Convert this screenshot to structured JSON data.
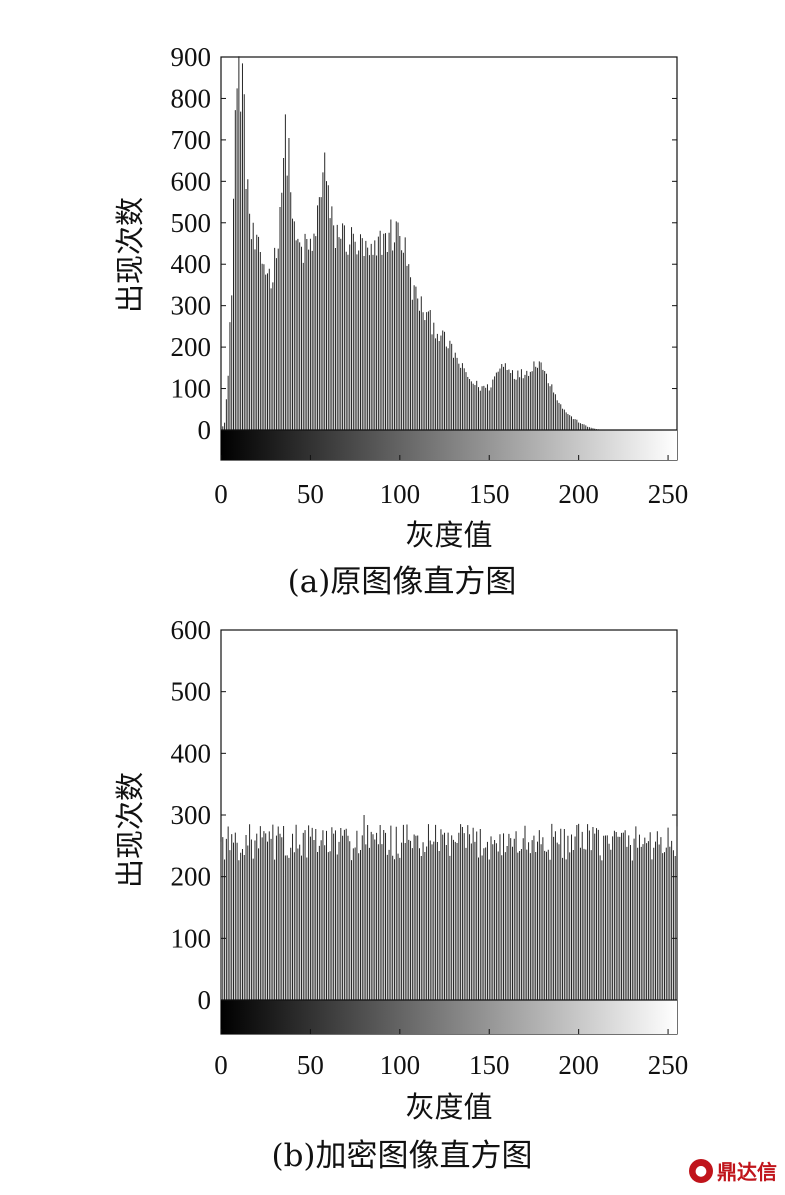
{
  "chart_data": [
    {
      "type": "bar",
      "panel": "a",
      "caption": "(a)原图像直方图",
      "xlabel": "灰度值",
      "ylabel": "出现次数",
      "xlim": [
        0,
        255
      ],
      "ylim": [
        0,
        900
      ],
      "xticks": [
        0,
        50,
        100,
        150,
        200,
        250
      ],
      "yticks": [
        0,
        100,
        200,
        300,
        400,
        500,
        600,
        700,
        800,
        900
      ],
      "grayscale_colorbar": true,
      "anchors": [
        [
          0,
          0
        ],
        [
          2,
          20
        ],
        [
          4,
          130
        ],
        [
          6,
          360
        ],
        [
          8,
          780
        ],
        [
          10,
          870
        ],
        [
          12,
          860
        ],
        [
          14,
          650
        ],
        [
          17,
          480
        ],
        [
          20,
          440
        ],
        [
          25,
          400
        ],
        [
          28,
          375
        ],
        [
          31,
          440
        ],
        [
          34,
          610
        ],
        [
          36,
          710
        ],
        [
          38,
          680
        ],
        [
          41,
          470
        ],
        [
          45,
          440
        ],
        [
          50,
          450
        ],
        [
          53,
          470
        ],
        [
          55,
          580
        ],
        [
          57,
          640
        ],
        [
          58,
          660
        ],
        [
          60,
          560
        ],
        [
          63,
          480
        ],
        [
          66,
          490
        ],
        [
          70,
          470
        ],
        [
          75,
          460
        ],
        [
          80,
          440
        ],
        [
          85,
          420
        ],
        [
          90,
          470
        ],
        [
          95,
          480
        ],
        [
          100,
          490
        ],
        [
          103,
          440
        ],
        [
          106,
          360
        ],
        [
          110,
          320
        ],
        [
          115,
          280
        ],
        [
          120,
          250
        ],
        [
          125,
          220
        ],
        [
          130,
          190
        ],
        [
          135,
          150
        ],
        [
          140,
          120
        ],
        [
          145,
          105
        ],
        [
          150,
          105
        ],
        [
          153,
          130
        ],
        [
          157,
          160
        ],
        [
          160,
          160
        ],
        [
          165,
          135
        ],
        [
          170,
          140
        ],
        [
          175,
          160
        ],
        [
          178,
          175
        ],
        [
          181,
          140
        ],
        [
          185,
          110
        ],
        [
          190,
          60
        ],
        [
          195,
          35
        ],
        [
          200,
          20
        ],
        [
          205,
          8
        ],
        [
          210,
          2
        ],
        [
          215,
          0
        ],
        [
          255,
          0
        ]
      ]
    },
    {
      "type": "bar",
      "panel": "b",
      "caption": "(b)加密图像直方图",
      "xlabel": "灰度值",
      "ylabel": "出现次数",
      "xlim": [
        0,
        255
      ],
      "ylim": [
        0,
        600
      ],
      "xticks": [
        0,
        50,
        100,
        150,
        200,
        250
      ],
      "yticks": [
        0,
        100,
        200,
        300,
        400,
        500,
        600
      ],
      "grayscale_colorbar": true,
      "mean": 256,
      "spread": 30,
      "peak": 300
    }
  ],
  "watermark": "鼎达信"
}
